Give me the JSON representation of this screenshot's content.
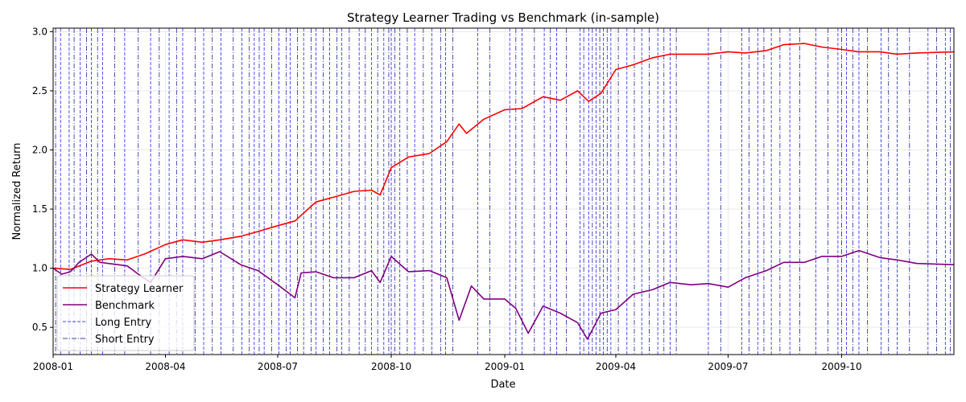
{
  "chart_data": {
    "type": "line",
    "title": "Strategy Learner Trading vs Benchmark (in-sample)",
    "xlabel": "Date",
    "ylabel": "Normalized Return",
    "x_range": [
      "2008-01-01",
      "2009-12-31"
    ],
    "ylim": [
      0.27,
      3.03
    ],
    "grid": true,
    "legend_position": "lower-left",
    "x_ticks": [
      "2008-01",
      "2008-04",
      "2008-07",
      "2008-10",
      "2009-01",
      "2009-04",
      "2009-07",
      "2009-10"
    ],
    "y_ticks": [
      0.5,
      1.0,
      1.5,
      2.0,
      2.5,
      3.0
    ],
    "y_tick_labels": [
      "0.5",
      "1.0",
      "1.5",
      "2.0",
      "2.5",
      "3.0"
    ],
    "series": [
      {
        "name": "Strategy Learner",
        "color": "#ff0000",
        "points": [
          [
            "2008-01-01",
            1.0
          ],
          [
            "2008-01-15",
            0.99
          ],
          [
            "2008-02-01",
            1.06
          ],
          [
            "2008-02-15",
            1.08
          ],
          [
            "2008-03-01",
            1.07
          ],
          [
            "2008-03-15",
            1.12
          ],
          [
            "2008-04-01",
            1.2
          ],
          [
            "2008-04-15",
            1.24
          ],
          [
            "2008-05-01",
            1.22
          ],
          [
            "2008-05-15",
            1.24
          ],
          [
            "2008-06-01",
            1.27
          ],
          [
            "2008-06-15",
            1.31
          ],
          [
            "2008-07-01",
            1.36
          ],
          [
            "2008-07-15",
            1.4
          ],
          [
            "2008-08-01",
            1.56
          ],
          [
            "2008-08-15",
            1.6
          ],
          [
            "2008-09-01",
            1.65
          ],
          [
            "2008-09-15",
            1.66
          ],
          [
            "2008-09-22",
            1.62
          ],
          [
            "2008-10-01",
            1.85
          ],
          [
            "2008-10-15",
            1.94
          ],
          [
            "2008-11-01",
            1.97
          ],
          [
            "2008-11-15",
            2.07
          ],
          [
            "2008-11-25",
            2.22
          ],
          [
            "2008-12-01",
            2.14
          ],
          [
            "2008-12-15",
            2.26
          ],
          [
            "2009-01-01",
            2.34
          ],
          [
            "2009-01-15",
            2.35
          ],
          [
            "2009-02-01",
            2.45
          ],
          [
            "2009-02-15",
            2.42
          ],
          [
            "2009-03-01",
            2.5
          ],
          [
            "2009-03-10",
            2.41
          ],
          [
            "2009-03-20",
            2.48
          ],
          [
            "2009-04-01",
            2.68
          ],
          [
            "2009-04-15",
            2.72
          ],
          [
            "2009-05-01",
            2.78
          ],
          [
            "2009-05-15",
            2.81
          ],
          [
            "2009-06-01",
            2.81
          ],
          [
            "2009-06-15",
            2.81
          ],
          [
            "2009-07-01",
            2.83
          ],
          [
            "2009-07-15",
            2.82
          ],
          [
            "2009-08-01",
            2.84
          ],
          [
            "2009-08-15",
            2.89
          ],
          [
            "2009-09-01",
            2.9
          ],
          [
            "2009-09-15",
            2.87
          ],
          [
            "2009-10-01",
            2.85
          ],
          [
            "2009-10-15",
            2.83
          ],
          [
            "2009-11-01",
            2.83
          ],
          [
            "2009-11-15",
            2.81
          ],
          [
            "2009-12-01",
            2.82
          ],
          [
            "2009-12-31",
            2.83
          ]
        ]
      },
      {
        "name": "Benchmark",
        "color": "#800080",
        "points": [
          [
            "2008-01-01",
            1.0
          ],
          [
            "2008-01-08",
            0.95
          ],
          [
            "2008-01-15",
            0.97
          ],
          [
            "2008-01-22",
            1.05
          ],
          [
            "2008-02-01",
            1.12
          ],
          [
            "2008-02-08",
            1.05
          ],
          [
            "2008-02-15",
            1.04
          ],
          [
            "2008-03-01",
            1.02
          ],
          [
            "2008-03-10",
            0.95
          ],
          [
            "2008-03-20",
            0.88
          ],
          [
            "2008-04-01",
            1.08
          ],
          [
            "2008-04-15",
            1.1
          ],
          [
            "2008-05-01",
            1.08
          ],
          [
            "2008-05-15",
            1.14
          ],
          [
            "2008-06-01",
            1.03
          ],
          [
            "2008-06-15",
            0.98
          ],
          [
            "2008-07-01",
            0.86
          ],
          [
            "2008-07-15",
            0.75
          ],
          [
            "2008-07-20",
            0.96
          ],
          [
            "2008-08-01",
            0.97
          ],
          [
            "2008-08-15",
            0.92
          ],
          [
            "2008-09-01",
            0.92
          ],
          [
            "2008-09-15",
            0.98
          ],
          [
            "2008-09-22",
            0.88
          ],
          [
            "2008-10-01",
            1.1
          ],
          [
            "2008-10-15",
            0.97
          ],
          [
            "2008-11-01",
            0.98
          ],
          [
            "2008-11-15",
            0.92
          ],
          [
            "2008-11-25",
            0.56
          ],
          [
            "2008-12-05",
            0.85
          ],
          [
            "2008-12-15",
            0.74
          ],
          [
            "2009-01-01",
            0.74
          ],
          [
            "2009-01-10",
            0.66
          ],
          [
            "2009-01-20",
            0.45
          ],
          [
            "2009-02-01",
            0.68
          ],
          [
            "2009-02-15",
            0.62
          ],
          [
            "2009-03-01",
            0.54
          ],
          [
            "2009-03-09",
            0.4
          ],
          [
            "2009-03-20",
            0.62
          ],
          [
            "2009-04-01",
            0.65
          ],
          [
            "2009-04-15",
            0.78
          ],
          [
            "2009-05-01",
            0.82
          ],
          [
            "2009-05-15",
            0.88
          ],
          [
            "2009-06-01",
            0.86
          ],
          [
            "2009-06-15",
            0.87
          ],
          [
            "2009-07-01",
            0.84
          ],
          [
            "2009-07-15",
            0.92
          ],
          [
            "2009-08-01",
            0.98
          ],
          [
            "2009-08-15",
            1.05
          ],
          [
            "2009-09-01",
            1.05
          ],
          [
            "2009-09-15",
            1.1
          ],
          [
            "2009-10-01",
            1.1
          ],
          [
            "2009-10-15",
            1.15
          ],
          [
            "2009-11-01",
            1.09
          ],
          [
            "2009-11-15",
            1.07
          ],
          [
            "2009-12-01",
            1.04
          ],
          [
            "2009-12-31",
            1.03
          ]
        ]
      }
    ],
    "long_entry": {
      "name": "Long Entry",
      "color": "#0000ff",
      "dates": [
        "2008-01-07",
        "2008-01-14",
        "2008-01-23",
        "2008-02-01",
        "2008-02-10",
        "2008-02-28",
        "2008-03-20",
        "2008-04-04",
        "2008-04-15",
        "2008-05-02",
        "2008-05-16",
        "2008-06-02",
        "2008-06-12",
        "2008-06-20",
        "2008-07-02",
        "2008-07-11",
        "2008-07-22",
        "2008-08-01",
        "2008-08-12",
        "2008-08-22",
        "2008-09-05",
        "2008-09-15",
        "2008-09-25",
        "2008-10-01",
        "2008-10-08",
        "2008-10-20",
        "2008-11-03",
        "2008-11-14",
        "2008-12-10",
        "2009-01-05",
        "2009-01-15",
        "2009-02-02",
        "2009-02-12",
        "2009-03-03",
        "2009-03-10",
        "2009-03-16",
        "2009-03-22",
        "2009-03-28",
        "2009-04-10",
        "2009-04-22",
        "2009-05-05",
        "2009-05-15",
        "2009-06-15",
        "2009-07-12",
        "2009-07-25",
        "2009-08-05",
        "2009-08-20",
        "2009-09-10",
        "2009-09-28",
        "2009-10-05",
        "2009-10-15",
        "2009-11-02",
        "2009-11-15",
        "2009-12-10",
        "2009-12-24"
      ]
    },
    "short_entry": {
      "name": "Short Entry",
      "color": "#00008b",
      "dates": [
        "2008-01-03",
        "2008-01-18",
        "2008-01-28",
        "2008-02-06",
        "2008-02-20",
        "2008-03-10",
        "2008-03-27",
        "2008-04-10",
        "2008-04-25",
        "2008-05-09",
        "2008-05-26",
        "2008-06-08",
        "2008-06-16",
        "2008-06-26",
        "2008-07-08",
        "2008-07-17",
        "2008-07-28",
        "2008-08-07",
        "2008-08-18",
        "2008-08-28",
        "2008-09-10",
        "2008-09-20",
        "2008-09-29",
        "2008-10-04",
        "2008-10-14",
        "2008-10-27",
        "2008-11-10",
        "2008-11-20",
        "2008-12-20",
        "2009-01-10",
        "2009-01-25",
        "2009-02-07",
        "2009-02-20",
        "2009-03-06",
        "2009-03-13",
        "2009-03-19",
        "2009-03-25",
        "2009-04-03",
        "2009-04-16",
        "2009-04-28",
        "2009-05-10",
        "2009-05-20",
        "2009-06-25",
        "2009-07-18",
        "2009-07-30",
        "2009-08-12",
        "2009-08-28",
        "2009-09-20",
        "2009-10-01",
        "2009-10-10",
        "2009-10-22",
        "2009-11-08",
        "2009-11-25",
        "2009-12-17",
        "2009-12-28"
      ]
    }
  }
}
